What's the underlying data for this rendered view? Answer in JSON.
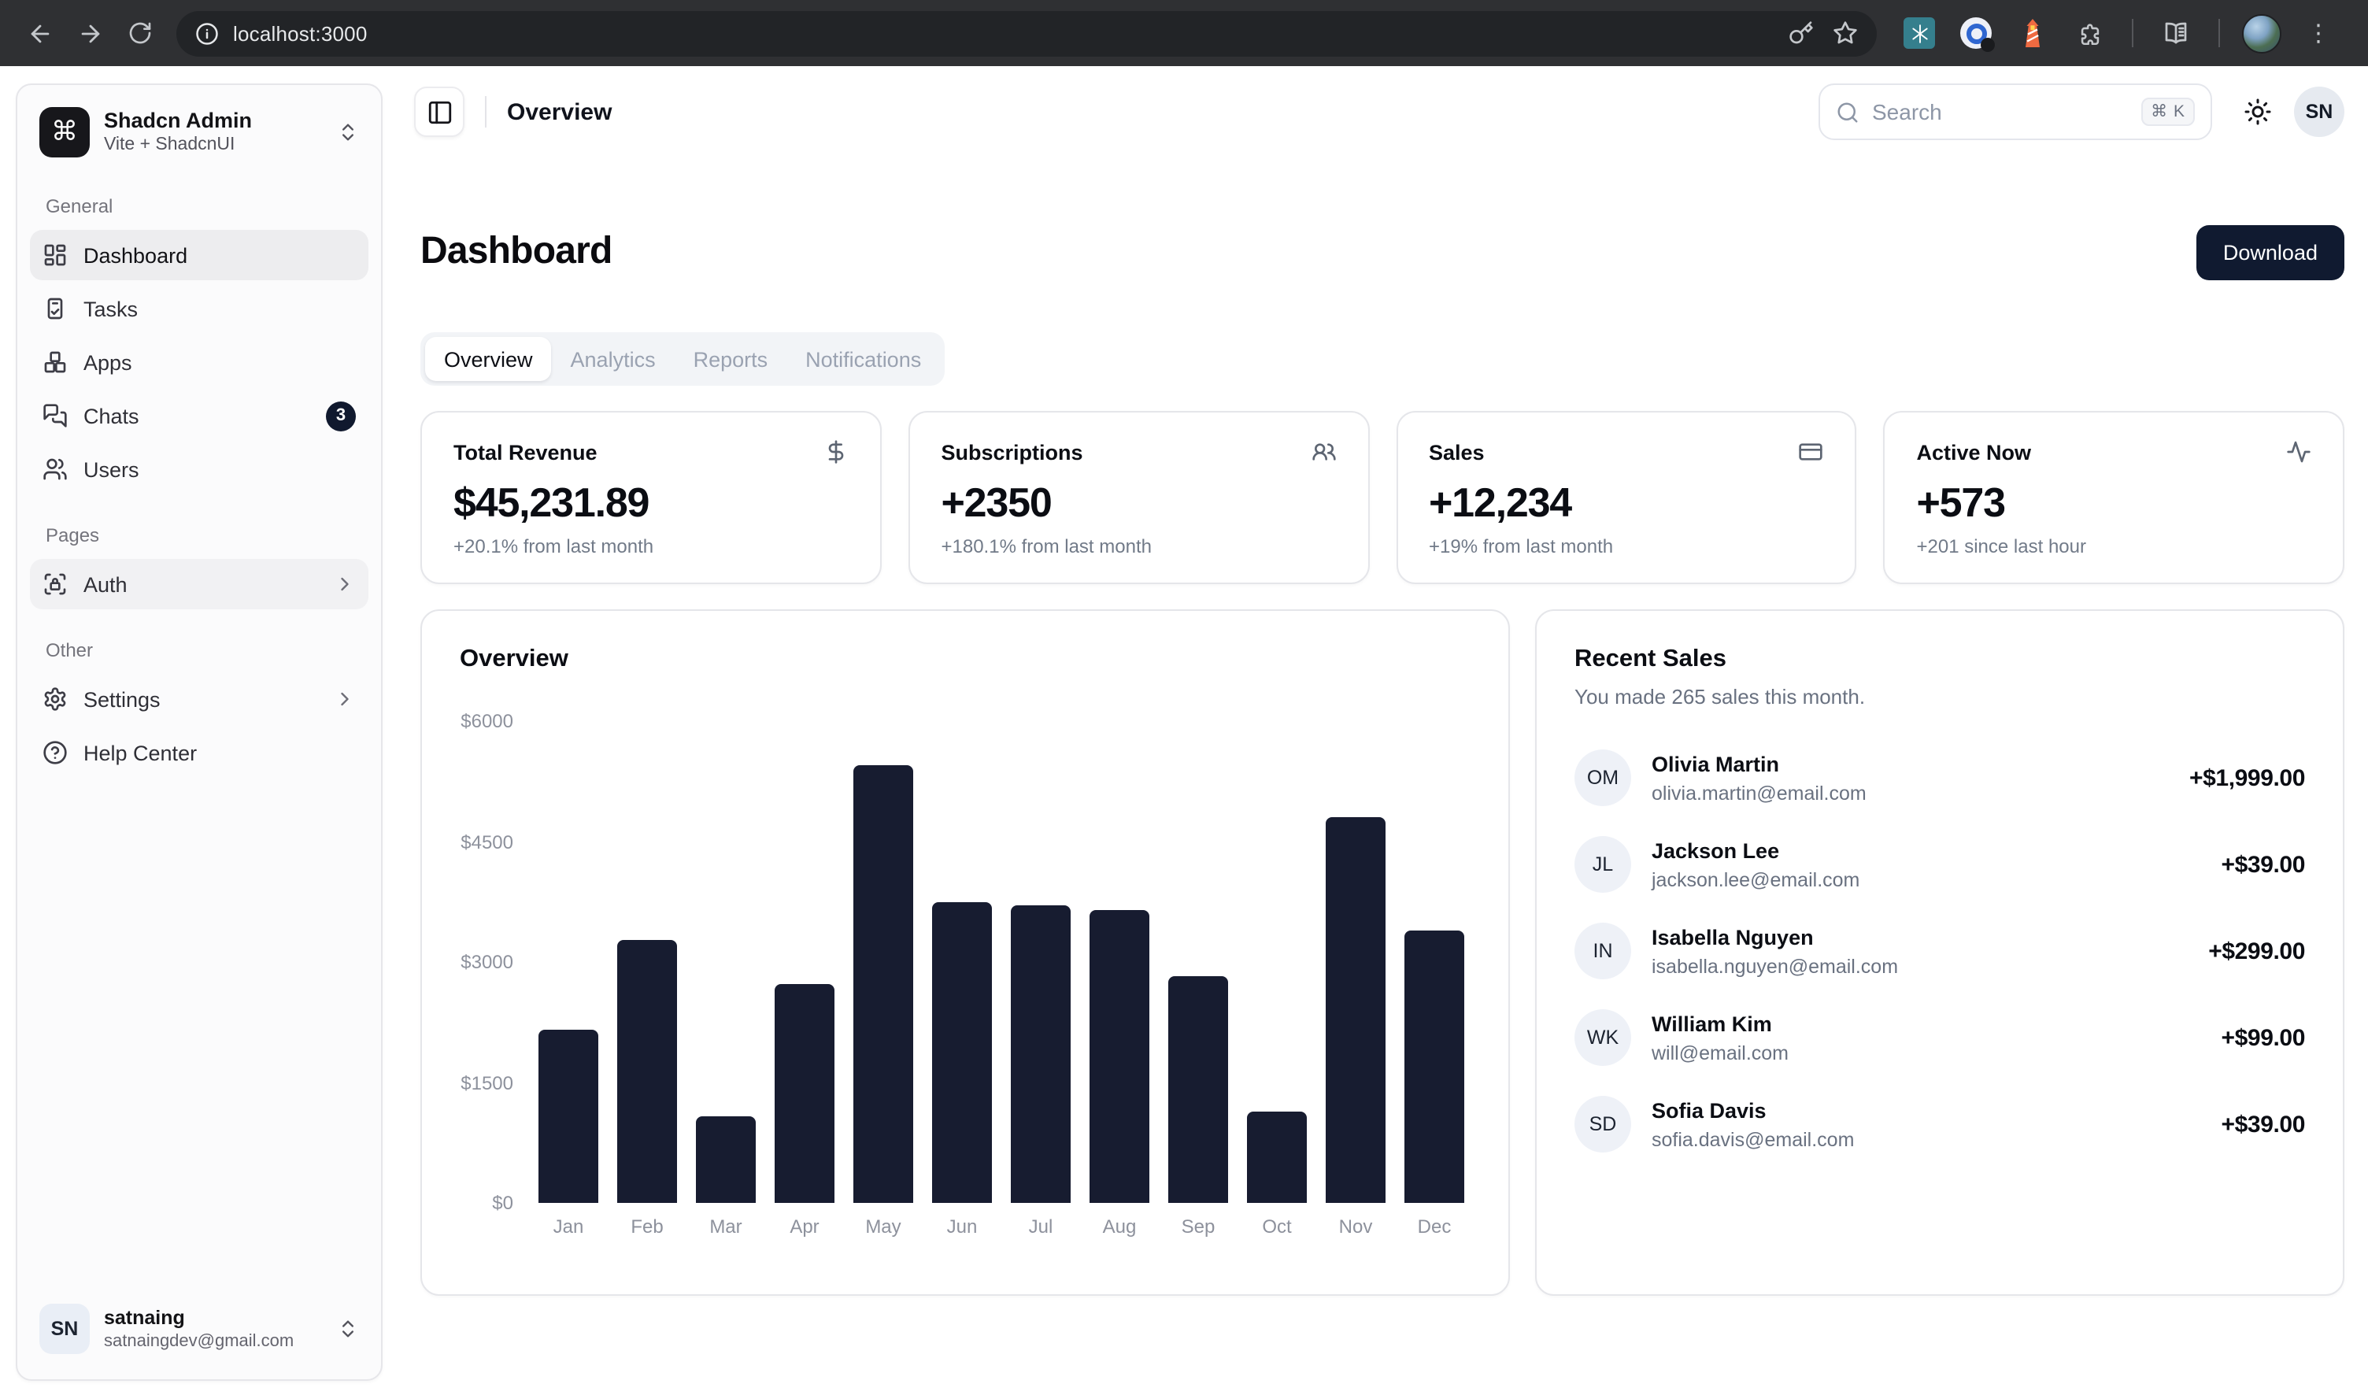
{
  "browser": {
    "url": "localhost:3000",
    "menu_glyph": "⋮"
  },
  "sidebar": {
    "team": {
      "logo_glyph": "⌘",
      "name": "Shadcn Admin",
      "subtitle": "Vite + ShadcnUI"
    },
    "sections": [
      {
        "label": "General",
        "items": [
          {
            "label": "Dashboard"
          },
          {
            "label": "Tasks"
          },
          {
            "label": "Apps"
          },
          {
            "label": "Chats",
            "badge": "3"
          },
          {
            "label": "Users"
          }
        ]
      },
      {
        "label": "Pages",
        "items": [
          {
            "label": "Auth"
          }
        ]
      },
      {
        "label": "Other",
        "items": [
          {
            "label": "Settings"
          },
          {
            "label": "Help Center"
          }
        ]
      }
    ],
    "user": {
      "initials": "SN",
      "name": "satnaing",
      "email": "satnaingdev@gmail.com"
    }
  },
  "header": {
    "breadcrumb": "Overview",
    "search": {
      "placeholder": "Search",
      "shortcut": "⌘ K"
    },
    "avatar_initials": "SN"
  },
  "page": {
    "title": "Dashboard",
    "download_label": "Download",
    "tabs": [
      {
        "label": "Overview",
        "active": true
      },
      {
        "label": "Analytics",
        "active": false
      },
      {
        "label": "Reports",
        "active": false
      },
      {
        "label": "Notifications",
        "active": false
      }
    ]
  },
  "stats": [
    {
      "title": "Total Revenue",
      "icon": "dollar-sign",
      "value": "$45,231.89",
      "change": "+20.1% from last month"
    },
    {
      "title": "Subscriptions",
      "icon": "users",
      "value": "+2350",
      "change": "+180.1% from last month"
    },
    {
      "title": "Sales",
      "icon": "credit-card",
      "value": "+12,234",
      "change": "+19% from last month"
    },
    {
      "title": "Active Now",
      "icon": "activity",
      "value": "+573",
      "change": "+201 since last hour"
    }
  ],
  "chart_data": {
    "type": "bar",
    "title": "Overview",
    "categories": [
      "Jan",
      "Feb",
      "Mar",
      "Apr",
      "May",
      "Jun",
      "Jul",
      "Aug",
      "Sep",
      "Oct",
      "Nov",
      "Dec"
    ],
    "values": [
      2160,
      3270,
      1090,
      2730,
      5450,
      3750,
      3700,
      3660,
      2820,
      1140,
      4800,
      3390
    ],
    "xlabel": "",
    "ylabel": "",
    "ylim": [
      0,
      6000
    ],
    "yticks": [
      "$6000",
      "$4500",
      "$3000",
      "$1500",
      "$0"
    ],
    "grid": false,
    "legend": false,
    "bar_color": "#171c30"
  },
  "recent_sales": {
    "title": "Recent Sales",
    "subtitle": "You made 265 sales this month.",
    "items": [
      {
        "initials": "OM",
        "name": "Olivia Martin",
        "email": "olivia.martin@email.com",
        "amount": "+$1,999.00"
      },
      {
        "initials": "JL",
        "name": "Jackson Lee",
        "email": "jackson.lee@email.com",
        "amount": "+$39.00"
      },
      {
        "initials": "IN",
        "name": "Isabella Nguyen",
        "email": "isabella.nguyen@email.com",
        "amount": "+$299.00"
      },
      {
        "initials": "WK",
        "name": "William Kim",
        "email": "will@email.com",
        "amount": "+$99.00"
      },
      {
        "initials": "SD",
        "name": "Sofia Davis",
        "email": "sofia.davis@email.com",
        "amount": "+$39.00"
      }
    ]
  },
  "colors": {
    "primary": "#0f172a",
    "bar": "#171c30",
    "muted_text": "#697180",
    "sidebar_bg": "#fbfbfc",
    "chrome_bg": "#2f3033"
  }
}
